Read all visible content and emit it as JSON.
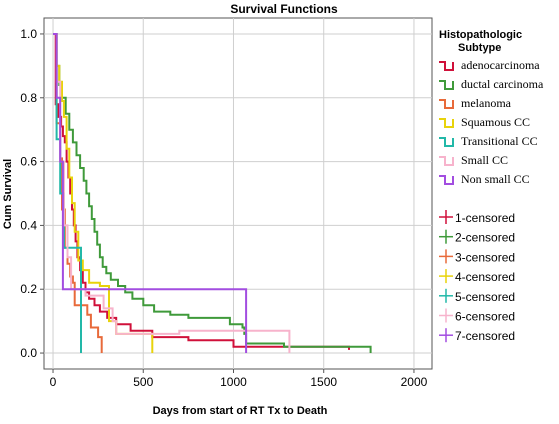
{
  "chart_data": {
    "type": "line",
    "title": "Survival Functions",
    "xlabel": "Days from start of RT Tx to Death",
    "ylabel": "Cum Survival",
    "xlim": [
      -50,
      2100
    ],
    "ylim": [
      -0.05,
      1.05
    ],
    "x_ticks": [
      0,
      500,
      1000,
      1500,
      2000
    ],
    "y_ticks": [
      0.0,
      0.2,
      0.4,
      0.6,
      0.8,
      1.0
    ],
    "x_tick_labels": [
      "0",
      "500",
      "1000",
      "1500",
      "2000"
    ],
    "y_tick_labels": [
      "0.0",
      "0.2",
      "0.4",
      "0.6",
      "0.8",
      "1.0"
    ],
    "grid": true,
    "legend_position": "right",
    "legend_title": "Histopathologic Subtype",
    "series": [
      {
        "name": "adenocarcinoma",
        "color": "#d0103a",
        "points": [
          [
            0,
            1.0
          ],
          [
            15,
            0.78
          ],
          [
            30,
            0.74
          ],
          [
            45,
            0.71
          ],
          [
            55,
            0.68
          ],
          [
            65,
            0.66
          ],
          [
            75,
            0.6
          ],
          [
            85,
            0.55
          ],
          [
            95,
            0.5
          ],
          [
            105,
            0.45
          ],
          [
            115,
            0.4
          ],
          [
            125,
            0.35
          ],
          [
            135,
            0.3
          ],
          [
            150,
            0.26
          ],
          [
            165,
            0.22
          ],
          [
            180,
            0.19
          ],
          [
            200,
            0.17
          ],
          [
            230,
            0.15
          ],
          [
            260,
            0.13
          ],
          [
            300,
            0.11
          ],
          [
            350,
            0.09
          ],
          [
            430,
            0.07
          ],
          [
            550,
            0.05
          ],
          [
            750,
            0.04
          ],
          [
            1000,
            0.02
          ],
          [
            1640,
            0.01
          ]
        ]
      },
      {
        "name": "ductal carcinoma",
        "color": "#3f9a3a",
        "points": [
          [
            0,
            1.0
          ],
          [
            20,
            0.9
          ],
          [
            35,
            0.84
          ],
          [
            50,
            0.8
          ],
          [
            70,
            0.75
          ],
          [
            90,
            0.7
          ],
          [
            110,
            0.66
          ],
          [
            130,
            0.62
          ],
          [
            150,
            0.58
          ],
          [
            170,
            0.54
          ],
          [
            185,
            0.5
          ],
          [
            200,
            0.46
          ],
          [
            215,
            0.42
          ],
          [
            230,
            0.38
          ],
          [
            245,
            0.34
          ],
          [
            260,
            0.3
          ],
          [
            275,
            0.27
          ],
          [
            295,
            0.25
          ],
          [
            320,
            0.23
          ],
          [
            360,
            0.21
          ],
          [
            400,
            0.19
          ],
          [
            440,
            0.17
          ],
          [
            500,
            0.15
          ],
          [
            560,
            0.13
          ],
          [
            650,
            0.12
          ],
          [
            750,
            0.11
          ],
          [
            980,
            0.09
          ],
          [
            1050,
            0.08
          ],
          [
            1060,
            0.06
          ],
          [
            1070,
            0.03
          ],
          [
            1280,
            0.02
          ],
          [
            1500,
            0.02
          ],
          [
            1760,
            0.0
          ]
        ]
      },
      {
        "name": "melanoma",
        "color": "#e86a3a",
        "points": [
          [
            0,
            1.0
          ],
          [
            20,
            0.72
          ],
          [
            40,
            0.61
          ],
          [
            50,
            0.45
          ],
          [
            65,
            0.33
          ],
          [
            80,
            0.28
          ],
          [
            95,
            0.24
          ],
          [
            110,
            0.22
          ],
          [
            120,
            0.15
          ],
          [
            190,
            0.12
          ],
          [
            210,
            0.08
          ],
          [
            250,
            0.05
          ],
          [
            270,
            0.0
          ]
        ]
      },
      {
        "name": "Squamous CC",
        "color": "#e8d30b",
        "points": [
          [
            0,
            1.0
          ],
          [
            20,
            0.9
          ],
          [
            35,
            0.85
          ],
          [
            50,
            0.79
          ],
          [
            60,
            0.74
          ],
          [
            75,
            0.64
          ],
          [
            90,
            0.55
          ],
          [
            105,
            0.47
          ],
          [
            120,
            0.38
          ],
          [
            140,
            0.29
          ],
          [
            165,
            0.26
          ],
          [
            200,
            0.22
          ],
          [
            260,
            0.21
          ],
          [
            310,
            0.1
          ],
          [
            350,
            0.06
          ],
          [
            450,
            0.06
          ],
          [
            550,
            0.0
          ]
        ]
      },
      {
        "name": "Transitional CC",
        "color": "#22b8a8",
        "points": [
          [
            0,
            1.0
          ],
          [
            20,
            0.67
          ],
          [
            40,
            0.5
          ],
          [
            60,
            0.33
          ],
          [
            140,
            0.33
          ],
          [
            155,
            0.0
          ]
        ]
      },
      {
        "name": "Small CC",
        "color": "#f7b3cc",
        "points": [
          [
            0,
            1.0
          ],
          [
            20,
            0.85
          ],
          [
            40,
            0.6
          ],
          [
            60,
            0.4
          ],
          [
            80,
            0.3
          ],
          [
            100,
            0.2
          ],
          [
            180,
            0.18
          ],
          [
            280,
            0.14
          ],
          [
            330,
            0.1
          ],
          [
            350,
            0.06
          ],
          [
            600,
            0.06
          ],
          [
            650,
            0.06
          ],
          [
            700,
            0.07
          ],
          [
            1300,
            0.07
          ],
          [
            1310,
            0.0
          ]
        ]
      },
      {
        "name": "Non small CC",
        "color": "#a24de0",
        "points": [
          [
            0,
            1.0
          ],
          [
            20,
            0.8
          ],
          [
            40,
            0.6
          ],
          [
            55,
            0.2
          ],
          [
            1060,
            0.2
          ],
          [
            1070,
            0.0
          ]
        ]
      }
    ],
    "censored_legend": [
      "1-censored",
      "2-censored",
      "3-censored",
      "4-censored",
      "5-censored",
      "6-censored",
      "7-censored"
    ]
  }
}
